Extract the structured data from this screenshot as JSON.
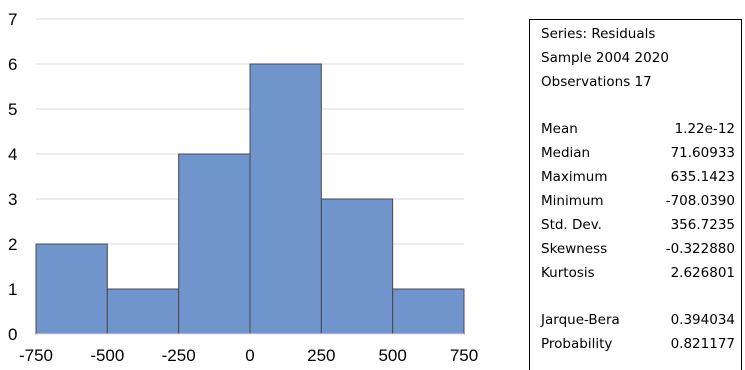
{
  "chart_data": {
    "type": "bar",
    "subtype": "histogram",
    "bins": [
      {
        "from": -750,
        "to": -500,
        "count": 2
      },
      {
        "from": -500,
        "to": -250,
        "count": 1
      },
      {
        "from": -250,
        "to": 0,
        "count": 4
      },
      {
        "from": 0,
        "to": 250,
        "count": 6
      },
      {
        "from": 250,
        "to": 500,
        "count": 3
      },
      {
        "from": 500,
        "to": 750,
        "count": 1
      }
    ],
    "xlim": [
      -750,
      750
    ],
    "ylim": [
      0,
      7
    ],
    "x_ticks": [
      "-750",
      "-500",
      "-250",
      "0",
      "250",
      "500",
      "750"
    ],
    "y_ticks": [
      "0",
      "1",
      "2",
      "3",
      "4",
      "5",
      "6",
      "7"
    ],
    "grid": "horizontal",
    "bar_color": "#7094cc",
    "bar_edge_color": "#4a4a4a",
    "grid_color": "#d9d9d9"
  },
  "stats": {
    "header": [
      "Series: Residuals",
      "Sample 2004 2020",
      "Observations 17"
    ],
    "rows": [
      {
        "label": "Mean",
        "value": "1.22e-12"
      },
      {
        "label": "Median",
        "value": "71.60933"
      },
      {
        "label": "Maximum",
        "value": "635.1423"
      },
      {
        "label": "Minimum",
        "value": "-708.0390"
      },
      {
        "label": "Std. Dev.",
        "value": "356.7235"
      },
      {
        "label": "Skewness",
        "value": "-0.322880"
      },
      {
        "label": "Kurtosis",
        "value": "2.626801"
      }
    ],
    "tests": [
      {
        "label": "Jarque-Bera",
        "value": "0.394034"
      },
      {
        "label": "Probability",
        "value": "0.821177"
      }
    ]
  }
}
